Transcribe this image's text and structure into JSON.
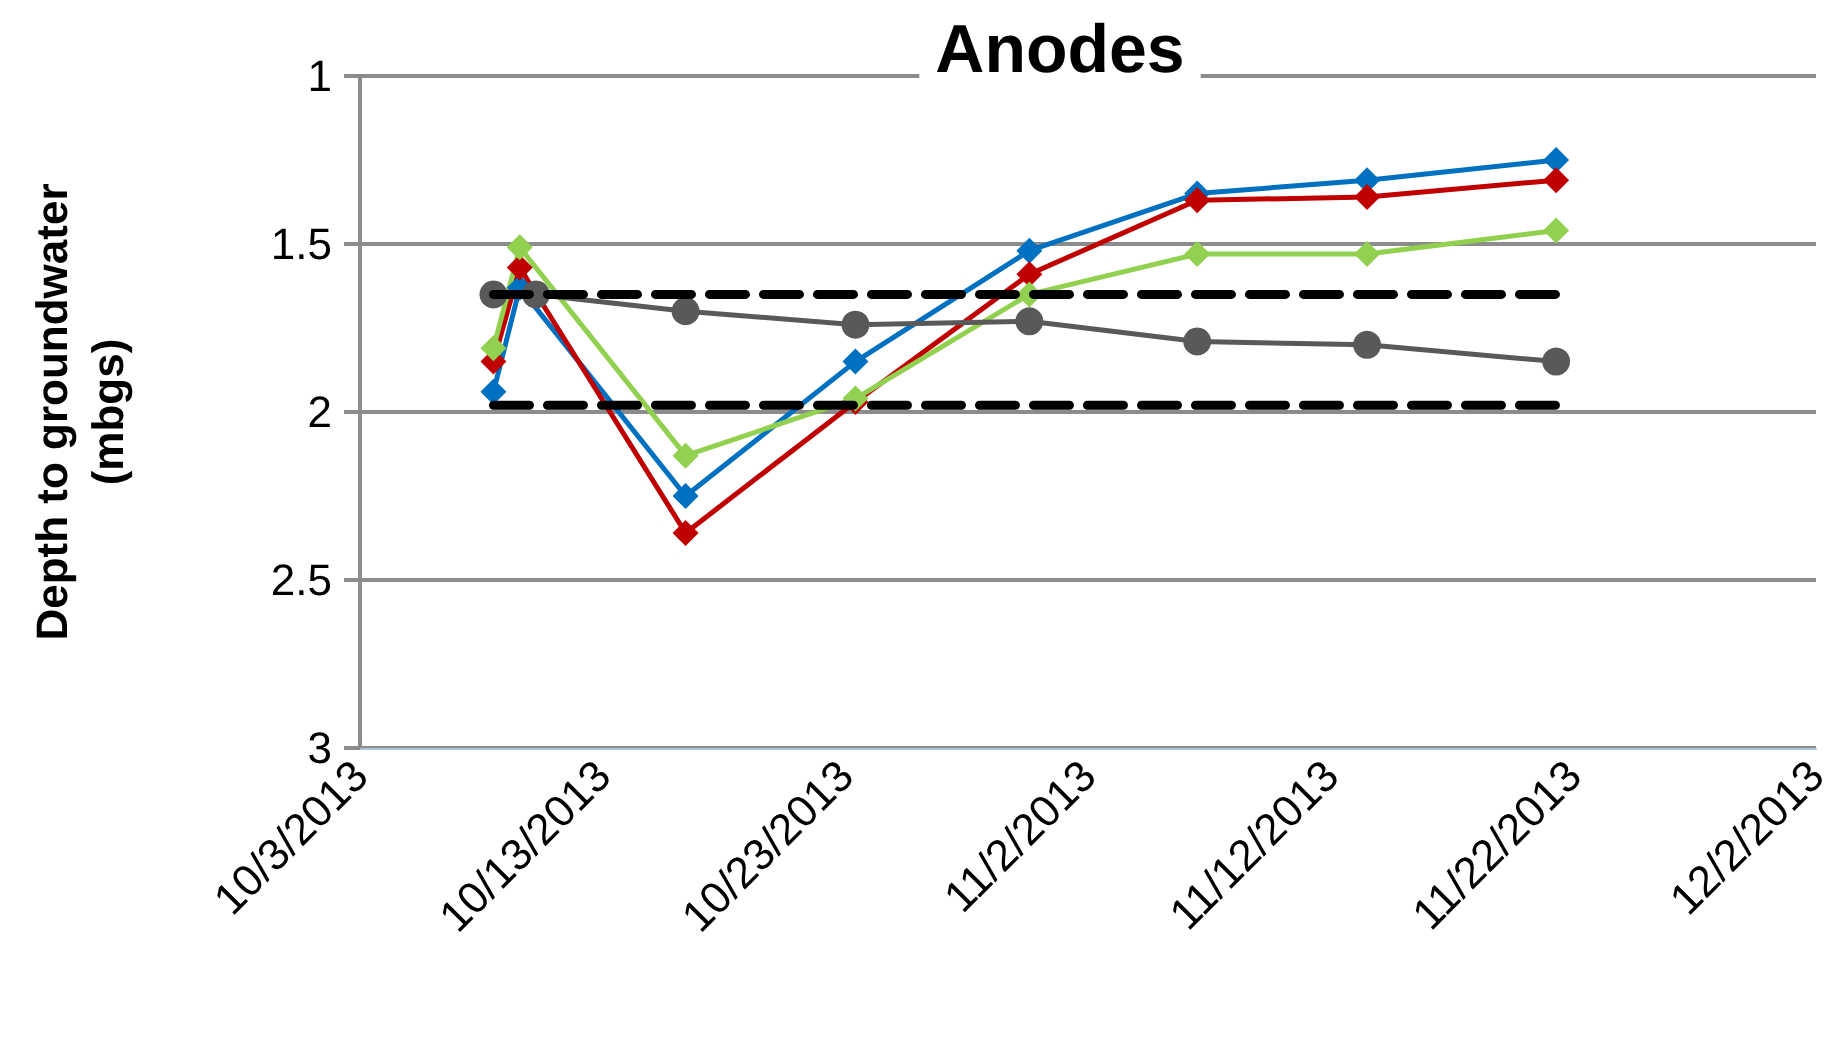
{
  "chart_data": {
    "type": "line",
    "title": "Anodes",
    "ylabel": "Depth to groundwater\n(mbgs)",
    "xlim": [
      "2013-10-03",
      "2013-12-02"
    ],
    "xticks": [
      {
        "value": "2013-10-03",
        "label": "10/3/2013"
      },
      {
        "value": "2013-10-13",
        "label": "10/13/2013"
      },
      {
        "value": "2013-10-23",
        "label": "10/23/2013"
      },
      {
        "value": "2013-11-02",
        "label": "11/2/2013"
      },
      {
        "value": "2013-11-12",
        "label": "11/12/2013"
      },
      {
        "value": "2013-11-22",
        "label": "11/22/2013"
      },
      {
        "value": "2013-12-02",
        "label": "12/2/2013"
      }
    ],
    "ylim": [
      3,
      1
    ],
    "yticks": [
      1,
      1.5,
      2,
      2.5,
      3
    ],
    "grid": "y",
    "x": [
      "2013-10-08T12:00",
      "2013-10-09T14:00",
      "2013-10-16T10:00",
      "2013-10-23T10:00",
      "2013-10-30T14:00",
      "2013-11-06T12:00",
      "2013-11-13T12:00",
      "2013-11-21T07:00"
    ],
    "series": [
      {
        "color": "#0070c0",
        "marker": "diamond",
        "values": [
          1.94,
          1.63,
          2.25,
          1.85,
          1.52,
          1.35,
          1.31,
          1.25
        ]
      },
      {
        "color": "#c00000",
        "marker": "diamond",
        "values": [
          1.85,
          1.57,
          2.36,
          1.97,
          1.59,
          1.37,
          1.36,
          1.31
        ]
      },
      {
        "color": "#92d050",
        "marker": "diamond",
        "values": [
          1.81,
          1.51,
          2.13,
          1.96,
          1.65,
          1.53,
          1.53,
          1.46
        ]
      },
      {
        "color": "#595959",
        "marker": "circle",
        "x": [
          "2013-10-08T12:00",
          "2013-10-10T06:00",
          "2013-10-16T10:00",
          "2013-10-23T10:00",
          "2013-10-30T14:00",
          "2013-11-06T12:00",
          "2013-11-13T12:00",
          "2013-11-21T07:00"
        ],
        "values": [
          1.65,
          1.65,
          1.7,
          1.74,
          1.73,
          1.79,
          1.8,
          1.85
        ]
      },
      {
        "color": "#000000",
        "marker": "none",
        "line_style": "dashed",
        "x": [
          "2013-10-08T12:00",
          "2013-11-21T07:00"
        ],
        "values": [
          1.65,
          1.65
        ]
      },
      {
        "color": "#000000",
        "marker": "none",
        "line_style": "dashed",
        "x": [
          "2013-10-08T12:00",
          "2013-11-21T07:00"
        ],
        "values": [
          1.98,
          1.98
        ]
      }
    ]
  }
}
